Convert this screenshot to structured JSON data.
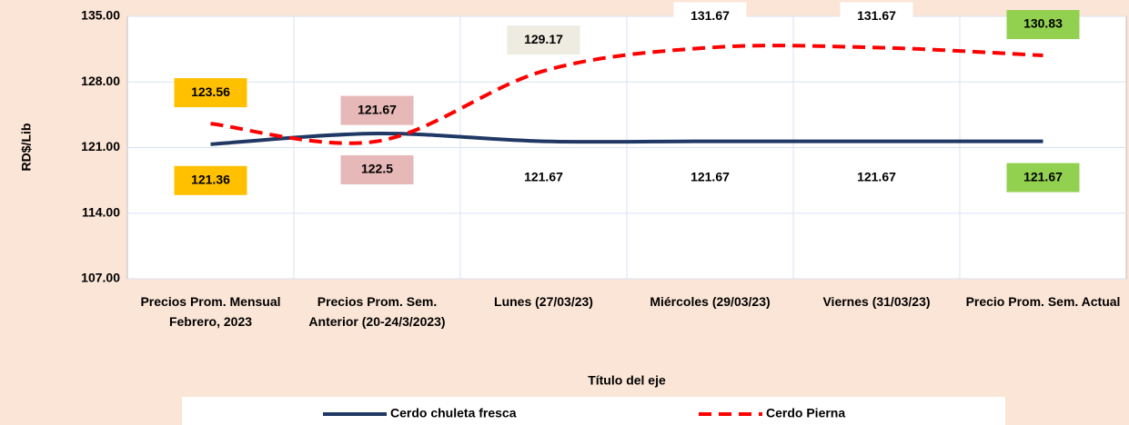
{
  "chart_data": {
    "type": "line",
    "x_label": "Título del eje",
    "y_label": "RD$/Lib",
    "categories": [
      "Precios Prom. Mensual Febrero, 2023",
      "Precios Prom. Sem. Anterior (20-24/3/2023)",
      "Lunes  (27/03/23)",
      "Miércoles (29/03/23)",
      "Viernes  (31/03/23)",
      "Precio Prom. Sem. Actual"
    ],
    "series": [
      {
        "name": "Cerdo chuleta fresca",
        "color": "#1f3864",
        "dash": false,
        "values": [
          121.36,
          122.5,
          121.67,
          121.67,
          121.67,
          121.67
        ],
        "label_backgrounds": [
          "#ffc000",
          "#e6b8b7",
          "#ffffff",
          "#ffffff",
          "#ffffff",
          "#92d050"
        ]
      },
      {
        "name": "Cerdo Pierna",
        "color": "#ff0000",
        "dash": true,
        "values": [
          123.56,
          121.67,
          129.17,
          131.67,
          131.67,
          130.83
        ],
        "label_backgrounds": [
          "#ffc000",
          "#e6b8b7",
          "#eeece1",
          "#ffffff",
          "#ffffff",
          "#92d050"
        ]
      }
    ],
    "ylim": [
      107,
      135
    ],
    "yticks": [
      {
        "value": 107,
        "label": "107.00"
      },
      {
        "value": 114,
        "label": "114.00"
      },
      {
        "value": 121,
        "label": "121.00"
      },
      {
        "value": 128,
        "label": "128.00"
      },
      {
        "value": 135,
        "label": "135.00"
      }
    ],
    "grid": true,
    "legend": "bottom",
    "background": "#fbe5d6"
  }
}
